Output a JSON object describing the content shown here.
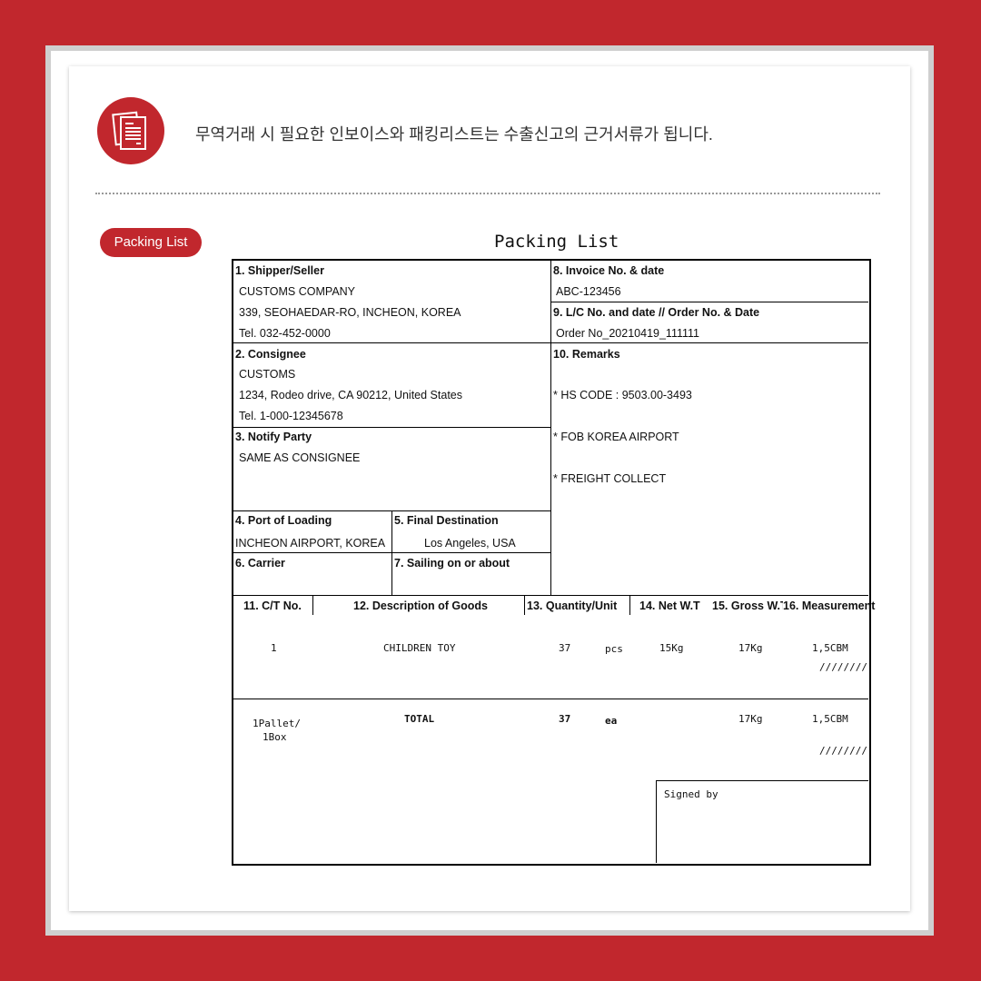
{
  "headline": "무역거래 시 필요한 인보이스와 패킹리스트는 수출신고의 근거서류가 됩니다.",
  "pill": "Packing List",
  "form": {
    "title": "Packing List",
    "shipper_label": "1. Shipper/Seller",
    "shipper": [
      "CUSTOMS COMPANY",
      "339, SEOHAEDAR-RO, INCHEON, KOREA",
      "Tel. 032-452-0000"
    ],
    "invoice_label": "8. Invoice No. & date",
    "invoice": "ABC-123456",
    "lc_label": "9. L/C No. and date // Order No. & Date",
    "lc": "Order No_20210419_111111",
    "consignee_label": "2. Consignee",
    "consignee": [
      "CUSTOMS",
      "1234, Rodeo drive, CA 90212, United States",
      "Tel. 1-000-12345678"
    ],
    "remarks_label": "10. Remarks",
    "remarks": [
      "* HS CODE : 9503.00-3493",
      "* FOB KOREA AIRPORT",
      "* FREIGHT COLLECT"
    ],
    "notify_label": "3. Notify Party",
    "notify": "SAME AS CONSIGNEE",
    "loading_label": "4. Port of Loading",
    "loading": "INCHEON AIRPORT, KOREA",
    "dest_label": "5. Final Destination",
    "dest": "Los Angeles, USA",
    "carrier_label": "6. Carrier",
    "sailing_label": "7. Sailing on or about",
    "columns": [
      "11. C/T No.",
      "12. Description of Goods",
      "13. Quantity/Unit",
      "14. Net W.T",
      "15. Gross W.T",
      "16. Measurement"
    ],
    "item": {
      "ct": "1",
      "desc": "CHILDREN TOY",
      "qty": "37",
      "unit": "pcs",
      "net": "15Kg",
      "gross": "17Kg",
      "meas": "1,5CBM",
      "slash": "////////"
    },
    "total": {
      "ct1": "1Pallet/",
      "ct2": "1Box",
      "desc": "TOTAL",
      "qty": "37",
      "unit": "ea",
      "gross": "17Kg",
      "meas": "1,5CBM",
      "slash": "////////"
    },
    "signed": "Signed by"
  }
}
